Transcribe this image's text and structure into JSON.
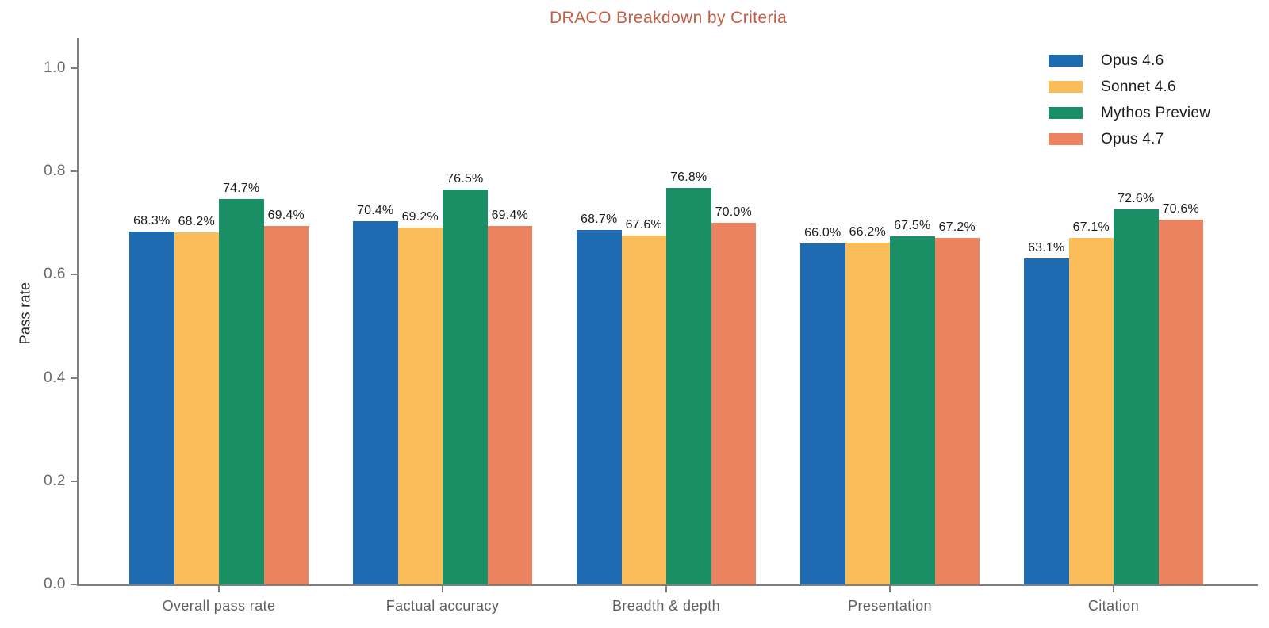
{
  "chart_data": {
    "type": "bar",
    "title": "DRACO Breakdown by Criteria",
    "ylabel": "Pass rate",
    "xlabel": "",
    "categories": [
      "Overall pass rate",
      "Factual accuracy",
      "Breadth & depth",
      "Presentation",
      "Citation"
    ],
    "series": [
      {
        "name": "Opus 4.6",
        "color": "#1f6bb2",
        "values": [
          0.683,
          0.704,
          0.687,
          0.66,
          0.631
        ],
        "labels": [
          "68.3%",
          "70.4%",
          "68.7%",
          "66.0%",
          "63.1%"
        ]
      },
      {
        "name": "Sonnet 4.6",
        "color": "#fbbd59",
        "values": [
          0.682,
          0.692,
          0.676,
          0.662,
          0.671
        ],
        "labels": [
          "68.2%",
          "69.2%",
          "67.6%",
          "66.2%",
          "67.1%"
        ]
      },
      {
        "name": "Mythos Preview",
        "color": "#1a8f66",
        "values": [
          0.747,
          0.765,
          0.768,
          0.675,
          0.726
        ],
        "labels": [
          "74.7%",
          "76.5%",
          "76.8%",
          "67.5%",
          "72.6%"
        ]
      },
      {
        "name": "Opus 4.7",
        "color": "#ec8360",
        "values": [
          0.694,
          0.694,
          0.7,
          0.672,
          0.706
        ],
        "labels": [
          "69.4%",
          "69.4%",
          "70.0%",
          "67.2%",
          "70.6%"
        ]
      }
    ],
    "yticks": {
      "values": [
        0.0,
        0.2,
        0.4,
        0.6,
        0.8,
        1.0
      ],
      "labels": [
        "0.0",
        "0.2",
        "0.4",
        "0.6",
        "0.8",
        "1.0"
      ]
    },
    "ylim": [
      0.0,
      1.06
    ],
    "grid": false,
    "legend_position": "upper right",
    "colors": {
      "title": "#c25e45",
      "axis": "#7f7f7f",
      "tick_label": "#6a6a6a",
      "category_label": "#5f5f5f",
      "value_label": "#1c1c1c"
    }
  }
}
